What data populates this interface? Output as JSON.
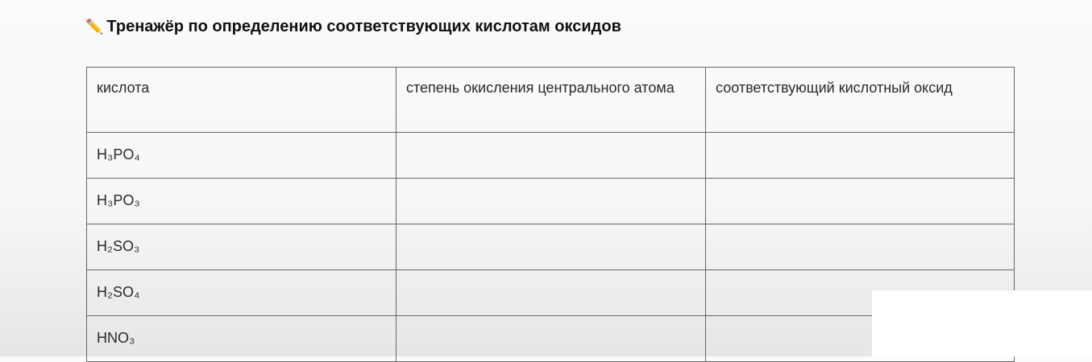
{
  "title": {
    "icon": "pencil-icon",
    "text": "Тренажёр по определению соответствующих кислотам оксидов"
  },
  "table": {
    "headers": [
      "кислота",
      "степень окисления центрального атома",
      "соответствующий кислотный оксид"
    ],
    "rows": [
      [
        "H₃PO₄",
        "",
        ""
      ],
      [
        "H₃PO₃",
        "",
        ""
      ],
      [
        "H₂SO₃",
        "",
        ""
      ],
      [
        "H₂SO₄",
        "",
        ""
      ],
      [
        "HNO₃",
        "",
        ""
      ]
    ]
  }
}
